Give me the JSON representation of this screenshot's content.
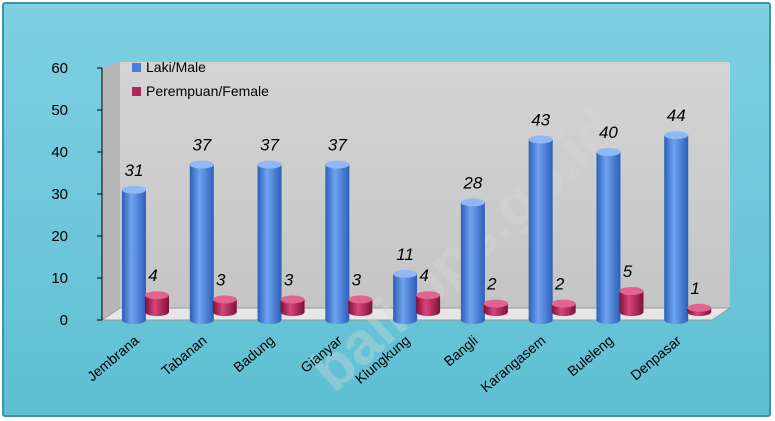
{
  "chart_data": {
    "type": "bar",
    "categories": [
      "Jembrana",
      "Tabanan",
      "Badung",
      "Gianyar",
      "Klungkung",
      "Bangli",
      "Karangasem",
      "Buleleng",
      "Denpasar"
    ],
    "series": [
      {
        "name": "Laki/Male",
        "color": "#4a7fd6",
        "values": [
          31,
          37,
          37,
          37,
          11,
          28,
          43,
          40,
          44
        ]
      },
      {
        "name": "Perempuan/Female",
        "color": "#b3245a",
        "values": [
          4,
          3,
          3,
          3,
          4,
          2,
          2,
          5,
          1
        ]
      }
    ],
    "ylim": [
      0,
      60
    ],
    "yticks": [
      0,
      10,
      20,
      30,
      40,
      50,
      60
    ],
    "legend": "top-left",
    "grid": false,
    "watermark": "bali.bps.go.id"
  }
}
